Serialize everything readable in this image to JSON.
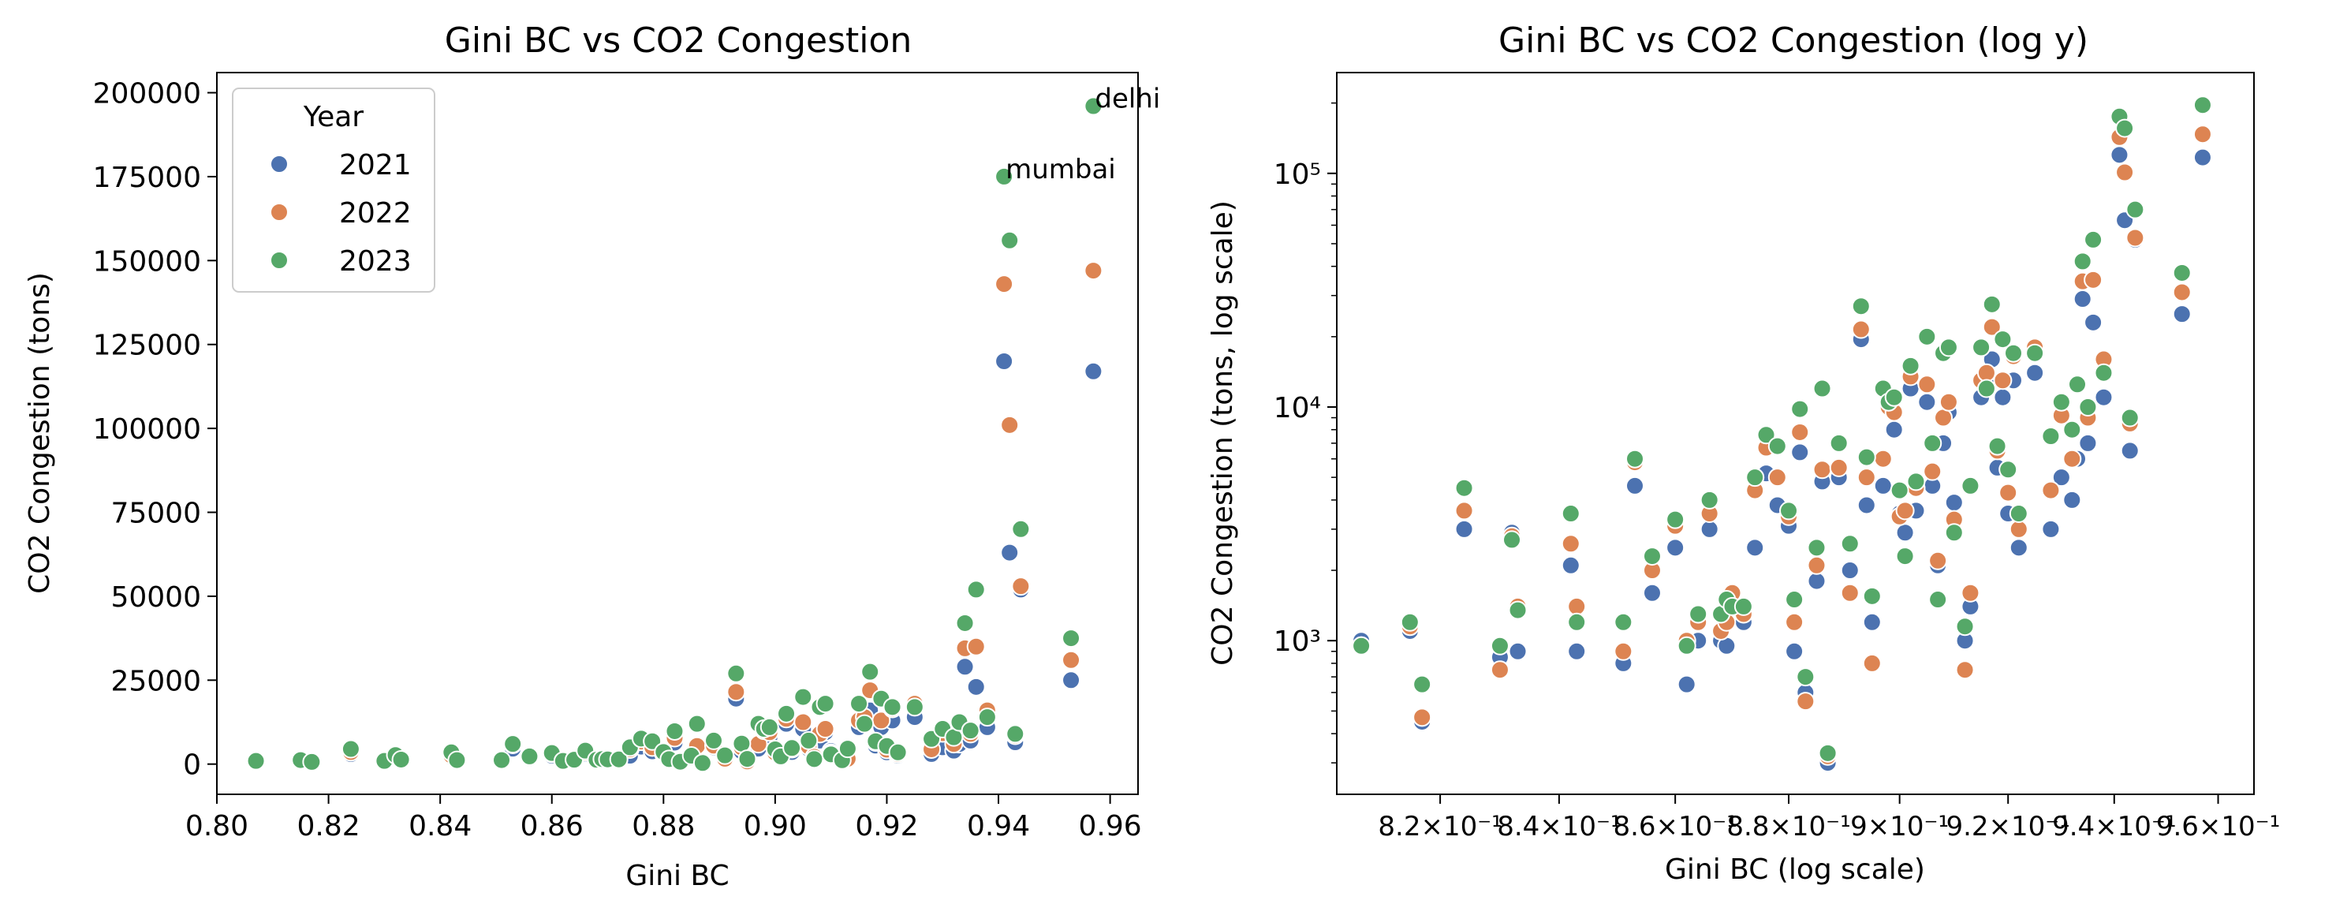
{
  "colors": {
    "2021": "#4c72b0",
    "2022": "#dd8452",
    "2023": "#55a868"
  },
  "chart_data": [
    {
      "type": "scatter",
      "title": "Gini BC vs CO2 Congestion",
      "xlabel": "Gini BC",
      "ylabel": "CO2 Congestion (tons)",
      "xlim": [
        0.8,
        0.965
      ],
      "ylim": [
        -9000,
        206000
      ],
      "xscale": "linear",
      "yscale": "linear",
      "x_ticks": [
        0.8,
        0.82,
        0.84,
        0.86,
        0.88,
        0.9,
        0.92,
        0.94,
        0.96
      ],
      "x_tick_labels": [
        "0.80",
        "0.82",
        "0.84",
        "0.86",
        "0.88",
        "0.90",
        "0.92",
        "0.94",
        "0.96"
      ],
      "y_ticks": [
        0,
        25000,
        50000,
        75000,
        100000,
        125000,
        150000,
        175000,
        200000
      ],
      "y_tick_labels": [
        "0",
        "25000",
        "50000",
        "75000",
        "100000",
        "125000",
        "150000",
        "175000",
        "200000"
      ],
      "grid": false,
      "legend": {
        "title": "Year",
        "placement": "top-left",
        "entries": [
          "2021",
          "2022",
          "2023"
        ]
      },
      "annotations": [
        {
          "text": "delhi",
          "x": 0.957,
          "y": 196000
        },
        {
          "text": "mumbai",
          "x": 0.941,
          "y": 175000
        }
      ]
    },
    {
      "type": "scatter",
      "title": "Gini BC vs CO2 Congestion (log y)",
      "xlabel": "Gini BC (log scale)",
      "ylabel": "CO2 Congestion (tons, log scale)",
      "xlim": [
        0.803,
        0.967
      ],
      "ylim": [
        220,
        270000
      ],
      "xscale": "log",
      "yscale": "log",
      "x_ticks": [
        0.82,
        0.84,
        0.86,
        0.88,
        0.9,
        0.92,
        0.94,
        0.96
      ],
      "x_tick_labels": [
        "8.2×10⁻¹",
        "8.4×10⁻¹",
        "8.6×10⁻¹",
        "8.8×10⁻¹",
        "9×10⁻¹",
        "9.2×10⁻¹",
        "9.4×10⁻¹",
        "9.6×10⁻¹"
      ],
      "y_ticks": [
        1000,
        10000,
        100000
      ],
      "y_tick_labels": [
        "10³",
        "10⁴",
        "10⁵"
      ],
      "grid": false
    }
  ],
  "series": [
    {
      "name": "2021",
      "points": [
        [
          0.807,
          1000
        ],
        [
          0.815,
          1100
        ],
        [
          0.817,
          450
        ],
        [
          0.824,
          3000
        ],
        [
          0.83,
          850
        ],
        [
          0.832,
          2900
        ],
        [
          0.833,
          900
        ],
        [
          0.842,
          2100
        ],
        [
          0.843,
          900
        ],
        [
          0.851,
          800
        ],
        [
          0.853,
          4600
        ],
        [
          0.856,
          1600
        ],
        [
          0.86,
          2500
        ],
        [
          0.862,
          650
        ],
        [
          0.864,
          1000
        ],
        [
          0.866,
          3000
        ],
        [
          0.868,
          1000
        ],
        [
          0.869,
          950
        ],
        [
          0.87,
          1400
        ],
        [
          0.872,
          1200
        ],
        [
          0.874,
          2500
        ],
        [
          0.876,
          5200
        ],
        [
          0.878,
          3800
        ],
        [
          0.88,
          3100
        ],
        [
          0.881,
          900
        ],
        [
          0.882,
          6400
        ],
        [
          0.883,
          600
        ],
        [
          0.885,
          1800
        ],
        [
          0.886,
          4800
        ],
        [
          0.887,
          300
        ],
        [
          0.889,
          5000
        ],
        [
          0.891,
          2000
        ],
        [
          0.893,
          19500
        ],
        [
          0.894,
          3800
        ],
        [
          0.895,
          1200
        ],
        [
          0.897,
          4600
        ],
        [
          0.898,
          10000
        ],
        [
          0.899,
          8000
        ],
        [
          0.9,
          3500
        ],
        [
          0.901,
          2900
        ],
        [
          0.902,
          12000
        ],
        [
          0.903,
          3600
        ],
        [
          0.905,
          10500
        ],
        [
          0.906,
          4600
        ],
        [
          0.907,
          2100
        ],
        [
          0.908,
          7000
        ],
        [
          0.909,
          9500
        ],
        [
          0.91,
          3900
        ],
        [
          0.912,
          1000
        ],
        [
          0.913,
          1400
        ],
        [
          0.915,
          11000
        ],
        [
          0.916,
          12500
        ],
        [
          0.917,
          16000
        ],
        [
          0.918,
          5500
        ],
        [
          0.919,
          11000
        ],
        [
          0.92,
          3500
        ],
        [
          0.921,
          13000
        ],
        [
          0.922,
          2500
        ],
        [
          0.925,
          14000
        ],
        [
          0.928,
          3000
        ],
        [
          0.93,
          5000
        ],
        [
          0.932,
          4000
        ],
        [
          0.933,
          6000
        ],
        [
          0.934,
          29000
        ],
        [
          0.935,
          7000
        ],
        [
          0.936,
          23000
        ],
        [
          0.938,
          11000
        ],
        [
          0.941,
          120000
        ],
        [
          0.942,
          63000
        ],
        [
          0.943,
          6500
        ],
        [
          0.944,
          52000
        ],
        [
          0.953,
          25000
        ],
        [
          0.957,
          117000
        ]
      ]
    },
    {
      "name": "2022",
      "points": [
        [
          0.807,
          950
        ],
        [
          0.815,
          1150
        ],
        [
          0.817,
          470
        ],
        [
          0.824,
          3600
        ],
        [
          0.83,
          750
        ],
        [
          0.832,
          2800
        ],
        [
          0.833,
          1400
        ],
        [
          0.842,
          2600
        ],
        [
          0.843,
          1400
        ],
        [
          0.851,
          900
        ],
        [
          0.853,
          5800
        ],
        [
          0.856,
          2000
        ],
        [
          0.86,
          3100
        ],
        [
          0.862,
          1000
        ],
        [
          0.864,
          1200
        ],
        [
          0.866,
          3500
        ],
        [
          0.868,
          1100
        ],
        [
          0.869,
          1200
        ],
        [
          0.87,
          1600
        ],
        [
          0.872,
          1300
        ],
        [
          0.874,
          4400
        ],
        [
          0.876,
          6700
        ],
        [
          0.878,
          5000
        ],
        [
          0.88,
          3400
        ],
        [
          0.881,
          1200
        ],
        [
          0.882,
          7800
        ],
        [
          0.883,
          550
        ],
        [
          0.885,
          2100
        ],
        [
          0.886,
          5400
        ],
        [
          0.887,
          320
        ],
        [
          0.889,
          5500
        ],
        [
          0.891,
          1600
        ],
        [
          0.893,
          21500
        ],
        [
          0.894,
          5000
        ],
        [
          0.895,
          800
        ],
        [
          0.897,
          6000
        ],
        [
          0.898,
          10000
        ],
        [
          0.899,
          9500
        ],
        [
          0.9,
          3400
        ],
        [
          0.901,
          3600
        ],
        [
          0.902,
          13500
        ],
        [
          0.903,
          4500
        ],
        [
          0.905,
          12500
        ],
        [
          0.906,
          5300
        ],
        [
          0.907,
          2200
        ],
        [
          0.908,
          9000
        ],
        [
          0.909,
          10500
        ],
        [
          0.91,
          3300
        ],
        [
          0.912,
          750
        ],
        [
          0.913,
          1600
        ],
        [
          0.915,
          13000
        ],
        [
          0.916,
          14000
        ],
        [
          0.917,
          22000
        ],
        [
          0.918,
          6500
        ],
        [
          0.919,
          13000
        ],
        [
          0.92,
          4300
        ],
        [
          0.921,
          16500
        ],
        [
          0.922,
          3000
        ],
        [
          0.925,
          18000
        ],
        [
          0.928,
          4400
        ],
        [
          0.93,
          9200
        ],
        [
          0.932,
          6000
        ],
        [
          0.933,
          12500
        ],
        [
          0.934,
          34500
        ],
        [
          0.935,
          9000
        ],
        [
          0.936,
          35000
        ],
        [
          0.938,
          16000
        ],
        [
          0.941,
          143000
        ],
        [
          0.942,
          101000
        ],
        [
          0.943,
          8500
        ],
        [
          0.944,
          53000
        ],
        [
          0.953,
          31000
        ],
        [
          0.957,
          147000
        ]
      ]
    },
    {
      "name": "2023",
      "points": [
        [
          0.807,
          950
        ],
        [
          0.815,
          1200
        ],
        [
          0.817,
          650
        ],
        [
          0.824,
          4500
        ],
        [
          0.83,
          950
        ],
        [
          0.832,
          2700
        ],
        [
          0.833,
          1350
        ],
        [
          0.842,
          3500
        ],
        [
          0.843,
          1200
        ],
        [
          0.851,
          1200
        ],
        [
          0.853,
          6000
        ],
        [
          0.856,
          2300
        ],
        [
          0.86,
          3300
        ],
        [
          0.862,
          950
        ],
        [
          0.864,
          1300
        ],
        [
          0.866,
          4000
        ],
        [
          0.868,
          1300
        ],
        [
          0.869,
          1500
        ],
        [
          0.87,
          1400
        ],
        [
          0.872,
          1400
        ],
        [
          0.874,
          5000
        ],
        [
          0.876,
          7600
        ],
        [
          0.878,
          6800
        ],
        [
          0.88,
          3600
        ],
        [
          0.881,
          1500
        ],
        [
          0.882,
          9800
        ],
        [
          0.883,
          700
        ],
        [
          0.885,
          2500
        ],
        [
          0.886,
          12000
        ],
        [
          0.887,
          330
        ],
        [
          0.889,
          7000
        ],
        [
          0.891,
          2600
        ],
        [
          0.893,
          27000
        ],
        [
          0.894,
          6100
        ],
        [
          0.895,
          1550
        ],
        [
          0.897,
          12000
        ],
        [
          0.898,
          10500
        ],
        [
          0.899,
          11000
        ],
        [
          0.9,
          4400
        ],
        [
          0.901,
          2300
        ],
        [
          0.902,
          15000
        ],
        [
          0.903,
          4800
        ],
        [
          0.905,
          20000
        ],
        [
          0.906,
          7000
        ],
        [
          0.907,
          1500
        ],
        [
          0.908,
          17000
        ],
        [
          0.909,
          18000
        ],
        [
          0.91,
          2900
        ],
        [
          0.912,
          1150
        ],
        [
          0.913,
          4600
        ],
        [
          0.915,
          18000
        ],
        [
          0.916,
          12000
        ],
        [
          0.917,
          27500
        ],
        [
          0.918,
          6800
        ],
        [
          0.919,
          19500
        ],
        [
          0.92,
          5400
        ],
        [
          0.921,
          17000
        ],
        [
          0.922,
          3500
        ],
        [
          0.925,
          17000
        ],
        [
          0.928,
          7500
        ],
        [
          0.93,
          10500
        ],
        [
          0.932,
          8000
        ],
        [
          0.933,
          12500
        ],
        [
          0.934,
          42000
        ],
        [
          0.935,
          10000
        ],
        [
          0.936,
          52000
        ],
        [
          0.938,
          14000
        ],
        [
          0.941,
          175000
        ],
        [
          0.942,
          156000
        ],
        [
          0.943,
          9000
        ],
        [
          0.944,
          70000
        ],
        [
          0.953,
          37500
        ],
        [
          0.957,
          196000
        ]
      ]
    }
  ]
}
